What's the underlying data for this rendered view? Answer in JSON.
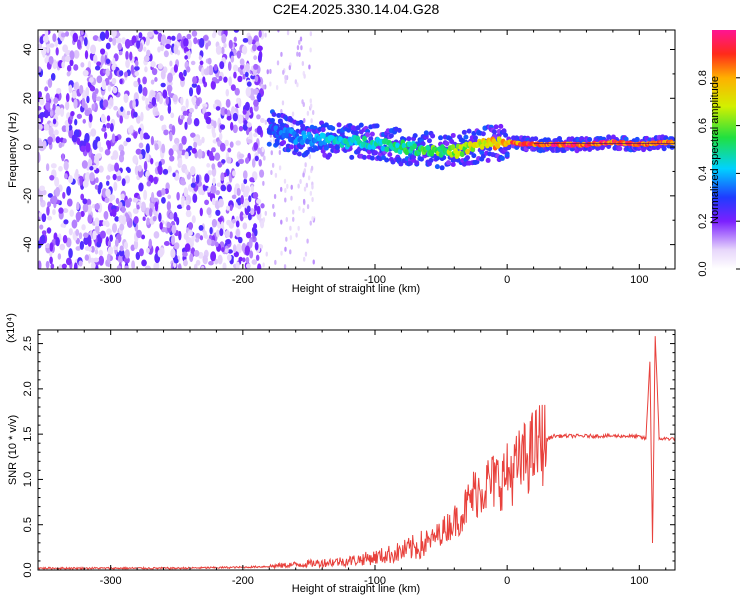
{
  "title": "C2E4.2025.330.14.04.G28",
  "chart_data": [
    {
      "type": "heatmap",
      "name": "spectrogram",
      "xlabel": "Height of straight line (km)",
      "ylabel": "Frequency (Hz)",
      "xlim": [
        -355,
        127
      ],
      "ylim": [
        -50,
        48
      ],
      "xticks": [
        -300,
        -200,
        -100,
        0,
        100
      ],
      "xtick_labels": [
        "-300",
        "-200",
        "-100",
        "0",
        "100"
      ],
      "yticks": [
        -40,
        -20,
        0,
        20,
        40
      ],
      "ytick_labels": [
        "-40",
        "-20",
        "0",
        "20",
        "40"
      ],
      "ridge": {
        "heights": [
          -180,
          -160,
          -140,
          -120,
          -100,
          -80,
          -60,
          -40,
          -20,
          0,
          20,
          40,
          60,
          80,
          100,
          125
        ],
        "frequency": [
          8,
          4,
          3,
          2,
          2,
          0,
          -1,
          -2,
          1,
          2,
          1,
          1,
          1,
          2,
          1,
          2
        ],
        "amplitude": [
          0.3,
          0.35,
          0.4,
          0.45,
          0.45,
          0.5,
          0.55,
          0.6,
          0.7,
          0.8,
          0.9,
          0.9,
          0.9,
          0.9,
          0.85,
          0.9
        ]
      },
      "colorbar": {
        "label": "Normalized spectral amplitude",
        "range": [
          0,
          1
        ],
        "ticks": [
          0.0,
          0.2,
          0.4,
          0.6,
          0.8
        ],
        "tick_labels": [
          "0.0",
          "0.2",
          "0.4",
          "0.6",
          "0.8"
        ]
      }
    },
    {
      "type": "line",
      "name": "snr",
      "xlabel": "Height of straight line (km)",
      "ylabel": "SNR (10 * v/v)",
      "scale_label": "(x10⁴)",
      "xlim": [
        -355,
        127
      ],
      "ylim": [
        0,
        2.65
      ],
      "xticks": [
        -300,
        -200,
        -100,
        0,
        100
      ],
      "xtick_labels": [
        "-300",
        "-200",
        "-100",
        "0",
        "100"
      ],
      "yticks": [
        0.0,
        0.5,
        1.0,
        1.5,
        2.0,
        2.5
      ],
      "ytick_labels": [
        "0.0",
        "0.5",
        "1.0",
        "1.5",
        "2.0",
        "2.5"
      ],
      "series": [
        {
          "name": "SNR",
          "color": "#e8413c",
          "x": [
            -355,
            -300,
            -250,
            -200,
            -180,
            -160,
            -140,
            -120,
            -100,
            -80,
            -60,
            -45,
            -35,
            -25,
            -15,
            -5,
            5,
            15,
            25,
            35,
            50,
            70,
            90,
            100,
            105,
            108,
            110,
            112,
            115,
            120,
            127
          ],
          "y": [
            0.02,
            0.02,
            0.02,
            0.03,
            0.04,
            0.06,
            0.08,
            0.1,
            0.14,
            0.2,
            0.3,
            0.48,
            0.6,
            0.85,
            0.95,
            1.0,
            1.1,
            1.25,
            1.4,
            1.48,
            1.48,
            1.48,
            1.48,
            1.47,
            1.45,
            2.3,
            0.3,
            2.6,
            1.45,
            1.45,
            1.45
          ]
        }
      ]
    }
  ]
}
